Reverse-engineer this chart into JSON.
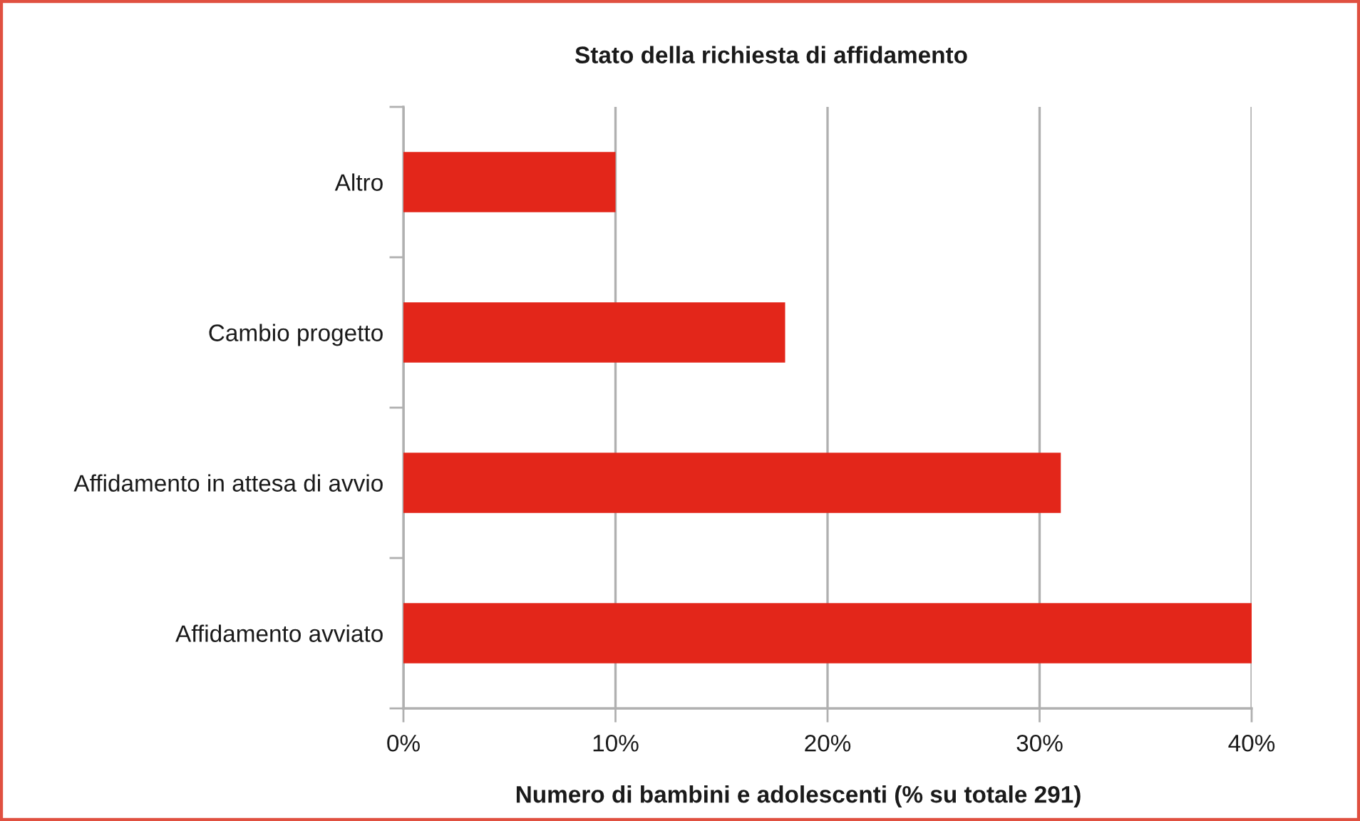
{
  "chart_data": {
    "type": "bar",
    "orientation": "horizontal",
    "title": "Stato della richiesta di affidamento",
    "xlabel": "Numero di bambini e adolescenti (% su totale 291)",
    "categories": [
      "Altro",
      "Cambio progetto",
      "Affidamento in attesa di avvio",
      "Affidamento avviato"
    ],
    "values": [
      10,
      18,
      31,
      40
    ],
    "color": "#e3261a",
    "xlim": [
      0,
      40
    ],
    "xticks": [
      {
        "value": 0,
        "label": "0%"
      },
      {
        "value": 10,
        "label": "10%"
      },
      {
        "value": 20,
        "label": "20%"
      },
      {
        "value": 30,
        "label": "30%"
      },
      {
        "value": 40,
        "label": "40%"
      }
    ],
    "grid": "x",
    "legend": false
  }
}
